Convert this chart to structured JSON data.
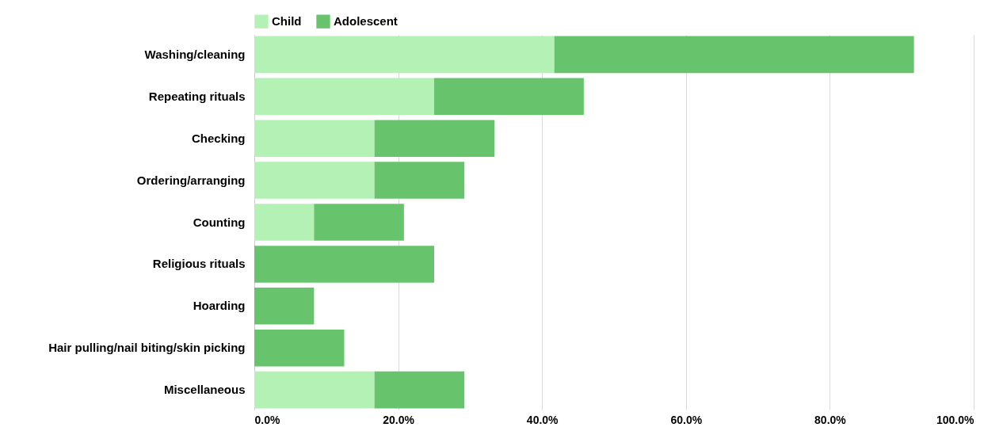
{
  "chart_data": {
    "type": "bar",
    "orientation": "horizontal",
    "stacked": true,
    "categories": [
      "Washing/cleaning",
      "Repeating rituals",
      "Checking",
      "Ordering/arranging",
      "Counting",
      "Religious rituals",
      "Hoarding",
      "Hair pulling/nail biting/skin picking",
      "Miscellaneous"
    ],
    "series": [
      {
        "name": "Child",
        "color": "#b3f1b4",
        "values": [
          41.7,
          25,
          16.7,
          16.7,
          8.3,
          null,
          null,
          null,
          16.7
        ]
      },
      {
        "name": "Adolescent",
        "color": "#68c46c",
        "values": [
          50,
          20.8,
          16.7,
          12.5,
          12.5,
          25,
          8.3,
          12.5,
          12.5
        ]
      }
    ],
    "xlim": [
      0,
      100
    ],
    "xticks": [
      {
        "value": 0,
        "label": "0.0%"
      },
      {
        "value": 20,
        "label": "20.0%"
      },
      {
        "value": 40,
        "label": "40.0%"
      },
      {
        "value": 60,
        "label": "60.0%"
      },
      {
        "value": 80,
        "label": "80.0%"
      },
      {
        "value": 100,
        "label": "100.0%"
      }
    ],
    "grid": "x",
    "legend": "top"
  }
}
